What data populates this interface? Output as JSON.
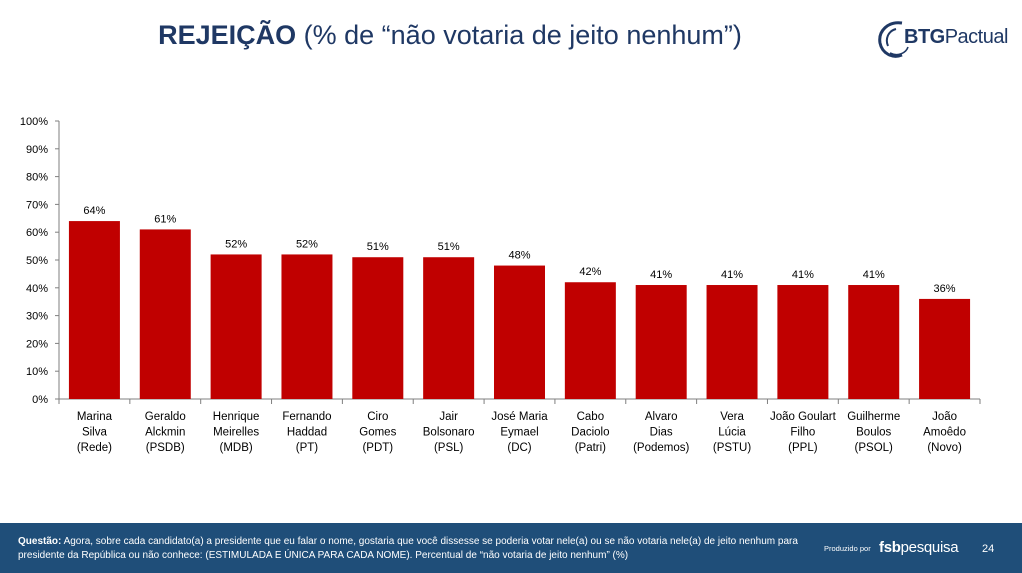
{
  "header": {
    "title_bold": "REJEIÇÃO",
    "title_rest": " (% de “não votaria de jeito nenhum”)"
  },
  "logo": {
    "part1": "BTG",
    "part2": "Pactual",
    "icon": "btg-swirl-icon"
  },
  "chart_data": {
    "type": "bar",
    "title": "REJEIÇÃO (% de “não votaria de jeito nenhum”)",
    "xlabel": "",
    "ylabel": "",
    "ylim": [
      0,
      100
    ],
    "yticks": [
      0,
      10,
      20,
      30,
      40,
      50,
      60,
      70,
      80,
      90,
      100
    ],
    "ytick_labels": [
      "0%",
      "10%",
      "20%",
      "30%",
      "40%",
      "50%",
      "60%",
      "70%",
      "80%",
      "90%",
      "100%"
    ],
    "grid": false,
    "bar_color": "#c00000",
    "categories": [
      [
        "Marina",
        "Silva",
        "(Rede)"
      ],
      [
        "Geraldo",
        "Alckmin",
        "(PSDB)"
      ],
      [
        "Henrique",
        "Meirelles",
        "(MDB)"
      ],
      [
        "Fernando",
        "Haddad",
        "(PT)"
      ],
      [
        "Ciro",
        "Gomes",
        "(PDT)"
      ],
      [
        "Jair",
        "Bolsonaro",
        "(PSL)"
      ],
      [
        "José Maria",
        "Eymael",
        "(DC)"
      ],
      [
        "Cabo",
        "Daciolo",
        "(Patri)"
      ],
      [
        "Alvaro",
        "Dias",
        "(Podemos)"
      ],
      [
        "Vera",
        "Lúcia",
        "(PSTU)"
      ],
      [
        "João Goulart",
        "Filho",
        "(PPL)"
      ],
      [
        "Guilherme",
        "Boulos",
        "(PSOL)"
      ],
      [
        "João",
        "Amoêdo",
        "(Novo)"
      ]
    ],
    "values": [
      64,
      61,
      52,
      52,
      51,
      51,
      48,
      42,
      41,
      41,
      41,
      41,
      36
    ],
    "data_labels": [
      "64%",
      "61%",
      "52%",
      "52%",
      "51%",
      "51%",
      "48%",
      "42%",
      "41%",
      "41%",
      "41%",
      "41%",
      "36%"
    ]
  },
  "footer": {
    "question_label": "Questão:",
    "question_text": " Agora, sobre cada candidato(a) a presidente que eu falar o nome, gostaria que você dissesse se poderia votar nele(a) ou se não votaria nele(a) de jeito nenhum para presidente da República ou não conhece:  (ESTIMULADA E ÚNICA PARA CADA NOME). Percentual de “não votaria de jeito nenhum” (%)",
    "produced_by": "Produzido por",
    "brand_bold": "fsb",
    "brand_rest": "pesquisa",
    "page_number": "24"
  }
}
